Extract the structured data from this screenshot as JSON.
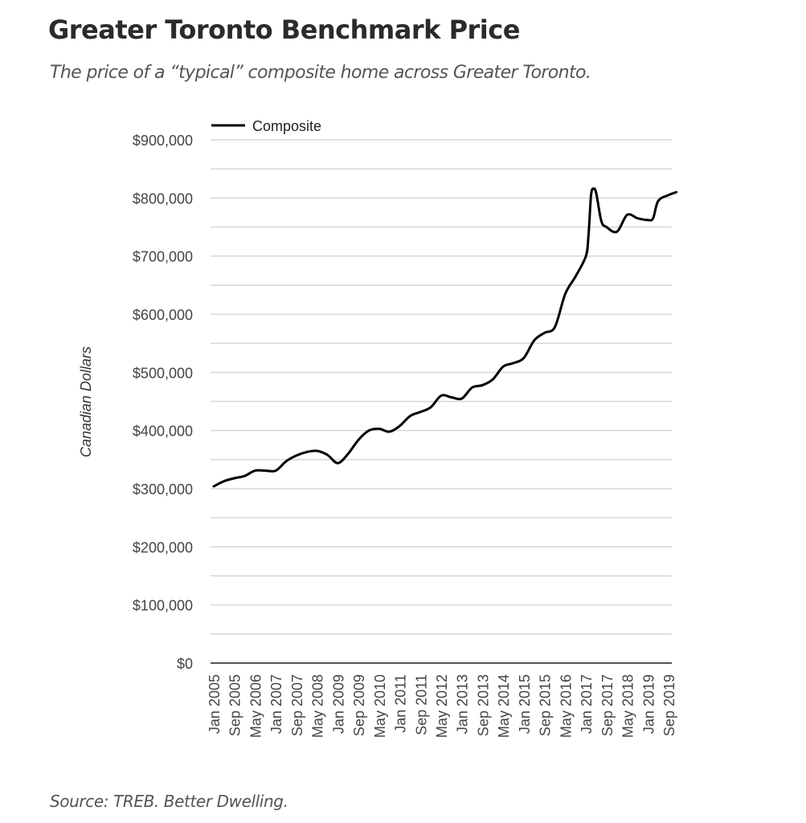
{
  "header": {
    "title": "Greater Toronto Benchmark Price",
    "subtitle": "The price of a “typical” composite home across Greater Toronto."
  },
  "footer": {
    "source": "Source: TREB. Better Dwelling."
  },
  "chart_data": {
    "type": "line",
    "title": "Greater Toronto Benchmark Price",
    "subtitle": "The price of a “typical” composite home across Greater Toronto.",
    "xlabel": "",
    "ylabel": "Canadian Dollars",
    "ylim": [
      0,
      900000
    ],
    "yticks": [
      0,
      100000,
      200000,
      300000,
      400000,
      500000,
      600000,
      700000,
      800000,
      900000
    ],
    "ytick_labels": [
      "$0",
      "$100,000",
      "$200,000",
      "$300,000",
      "$400,000",
      "$500,000",
      "$600,000",
      "$700,000",
      "$800,000",
      "$900,000"
    ],
    "xtick_labels": [
      "Jan 2005",
      "Sep 2005",
      "May 2006",
      "Jan 2007",
      "Sep 2007",
      "May 2008",
      "Jan 2009",
      "Sep 2009",
      "May 2010",
      "Jan 2011",
      "Sep 2011",
      "May 2012",
      "Jan 2013",
      "Sep 2013",
      "May 2014",
      "Jan 2015",
      "Sep 2015",
      "May 2016",
      "Jan 2017",
      "Sep 2017",
      "May 2018",
      "Jan 2019",
      "Sep 2019"
    ],
    "xtick_month_index": [
      0,
      8,
      16,
      24,
      32,
      40,
      48,
      56,
      64,
      72,
      80,
      88,
      96,
      104,
      112,
      120,
      128,
      136,
      144,
      152,
      160,
      168,
      176
    ],
    "x_month_range": [
      0,
      179
    ],
    "grid": true,
    "legend": {
      "position": "top-left",
      "entries": [
        "Composite"
      ]
    },
    "series": [
      {
        "name": "Composite",
        "color": "#000000",
        "month_index": [
          0,
          4,
          8,
          12,
          16,
          20,
          24,
          28,
          32,
          36,
          40,
          44,
          48,
          52,
          56,
          60,
          64,
          68,
          72,
          76,
          80,
          84,
          88,
          92,
          96,
          100,
          104,
          108,
          112,
          116,
          120,
          124,
          128,
          132,
          136,
          140,
          144,
          145,
          146,
          147,
          148,
          150,
          152,
          156,
          160,
          164,
          168,
          170,
          172,
          176,
          179
        ],
        "dates": [
          "Jan 2005",
          "May 2005",
          "Sep 2005",
          "Jan 2006",
          "May 2006",
          "Sep 2006",
          "Jan 2007",
          "May 2007",
          "Sep 2007",
          "Jan 2008",
          "May 2008",
          "Sep 2008",
          "Jan 2009",
          "May 2009",
          "Sep 2009",
          "Jan 2010",
          "May 2010",
          "Sep 2010",
          "Jan 2011",
          "May 2011",
          "Sep 2011",
          "Jan 2012",
          "May 2012",
          "Sep 2012",
          "Jan 2013",
          "May 2013",
          "Sep 2013",
          "Jan 2014",
          "May 2014",
          "Sep 2014",
          "Jan 2015",
          "May 2015",
          "Sep 2015",
          "Jan 2016",
          "May 2016",
          "Sep 2016",
          "Jan 2017",
          "Feb 2017",
          "Mar 2017",
          "Apr 2017",
          "May 2017",
          "Jul 2017",
          "Sep 2017",
          "Jan 2018",
          "May 2018",
          "Sep 2018",
          "Jan 2019",
          "Mar 2019",
          "May 2019",
          "Sep 2019",
          "Dec 2019"
        ],
        "values": [
          304000,
          313000,
          318000,
          322000,
          331000,
          331000,
          331000,
          347000,
          357000,
          363000,
          365000,
          358000,
          344000,
          360000,
          384000,
          400000,
          403000,
          398000,
          408000,
          425000,
          432000,
          440000,
          460000,
          457000,
          455000,
          474000,
          478000,
          488000,
          510000,
          516000,
          525000,
          555000,
          568000,
          578000,
          635000,
          665000,
          700000,
          735000,
          805000,
          816000,
          808000,
          760000,
          750000,
          742000,
          771000,
          765000,
          762000,
          765000,
          795000,
          805000,
          810000
        ]
      }
    ]
  }
}
